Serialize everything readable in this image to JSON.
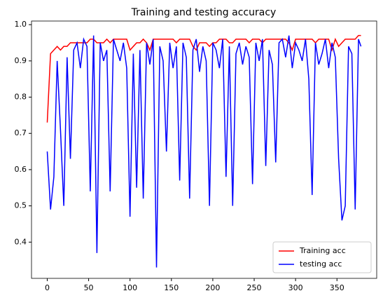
{
  "chart_data": {
    "type": "line",
    "title": "Training and testing accuracy",
    "x": [
      0,
      4,
      8,
      12,
      16,
      20,
      24,
      28,
      32,
      36,
      40,
      44,
      48,
      52,
      56,
      60,
      64,
      68,
      72,
      76,
      80,
      84,
      88,
      92,
      96,
      100,
      104,
      108,
      112,
      116,
      120,
      124,
      128,
      132,
      136,
      140,
      144,
      148,
      152,
      156,
      160,
      164,
      168,
      172,
      176,
      180,
      184,
      188,
      192,
      196,
      200,
      204,
      208,
      212,
      216,
      220,
      224,
      228,
      232,
      236,
      240,
      244,
      248,
      252,
      256,
      260,
      264,
      268,
      272,
      276,
      280,
      284,
      288,
      292,
      296,
      300,
      304,
      308,
      312,
      316,
      320,
      324,
      328,
      332,
      336,
      340,
      344,
      348,
      352,
      356,
      360,
      364,
      368,
      372,
      376,
      379
    ],
    "series": [
      {
        "name": "Training acc",
        "color": "#ff0000",
        "values": [
          0.73,
          0.92,
          0.93,
          0.94,
          0.93,
          0.94,
          0.94,
          0.95,
          0.95,
          0.95,
          0.95,
          0.95,
          0.95,
          0.96,
          0.96,
          0.95,
          0.95,
          0.95,
          0.96,
          0.95,
          0.96,
          0.96,
          0.96,
          0.96,
          0.96,
          0.93,
          0.94,
          0.95,
          0.95,
          0.96,
          0.95,
          0.93,
          0.96,
          0.96,
          0.96,
          0.96,
          0.96,
          0.96,
          0.96,
          0.95,
          0.96,
          0.96,
          0.96,
          0.96,
          0.94,
          0.93,
          0.95,
          0.95,
          0.95,
          0.94,
          0.95,
          0.95,
          0.96,
          0.96,
          0.96,
          0.95,
          0.95,
          0.96,
          0.96,
          0.96,
          0.96,
          0.95,
          0.96,
          0.96,
          0.96,
          0.95,
          0.96,
          0.96,
          0.96,
          0.96,
          0.96,
          0.96,
          0.96,
          0.95,
          0.93,
          0.96,
          0.96,
          0.96,
          0.96,
          0.96,
          0.96,
          0.95,
          0.96,
          0.96,
          0.96,
          0.96,
          0.93,
          0.96,
          0.94,
          0.95,
          0.96,
          0.96,
          0.96,
          0.96,
          0.97,
          0.97
        ]
      },
      {
        "name": "testing acc",
        "color": "#0000ff",
        "values": [
          0.65,
          0.49,
          0.58,
          0.9,
          0.71,
          0.5,
          0.91,
          0.63,
          0.93,
          0.95,
          0.88,
          0.96,
          0.94,
          0.54,
          0.97,
          0.37,
          0.95,
          0.9,
          0.93,
          0.54,
          0.96,
          0.93,
          0.9,
          0.95,
          0.88,
          0.47,
          0.92,
          0.55,
          0.93,
          0.52,
          0.95,
          0.89,
          0.96,
          0.33,
          0.94,
          0.9,
          0.65,
          0.95,
          0.88,
          0.94,
          0.57,
          0.95,
          0.91,
          0.52,
          0.93,
          0.96,
          0.87,
          0.94,
          0.9,
          0.5,
          0.95,
          0.93,
          0.88,
          0.96,
          0.58,
          0.94,
          0.5,
          0.92,
          0.95,
          0.89,
          0.94,
          0.91,
          0.56,
          0.95,
          0.9,
          0.96,
          0.61,
          0.93,
          0.89,
          0.62,
          0.95,
          0.96,
          0.91,
          0.97,
          0.88,
          0.95,
          0.93,
          0.9,
          0.96,
          0.85,
          0.53,
          0.95,
          0.89,
          0.92,
          0.96,
          0.88,
          0.95,
          0.91,
          0.63,
          0.46,
          0.5,
          0.94,
          0.92,
          0.49,
          0.96,
          0.94
        ]
      }
    ],
    "xlim": [
      -19,
      398
    ],
    "xticks": [
      0,
      50,
      100,
      150,
      200,
      250,
      300,
      350
    ],
    "ylim": [
      0.3,
      1.01
    ],
    "yticks": [
      0.4,
      0.5,
      0.6,
      0.7,
      0.8,
      0.9,
      {
        "value": 1,
        "label": "1.0"
      }
    ],
    "legend": "lower right"
  }
}
